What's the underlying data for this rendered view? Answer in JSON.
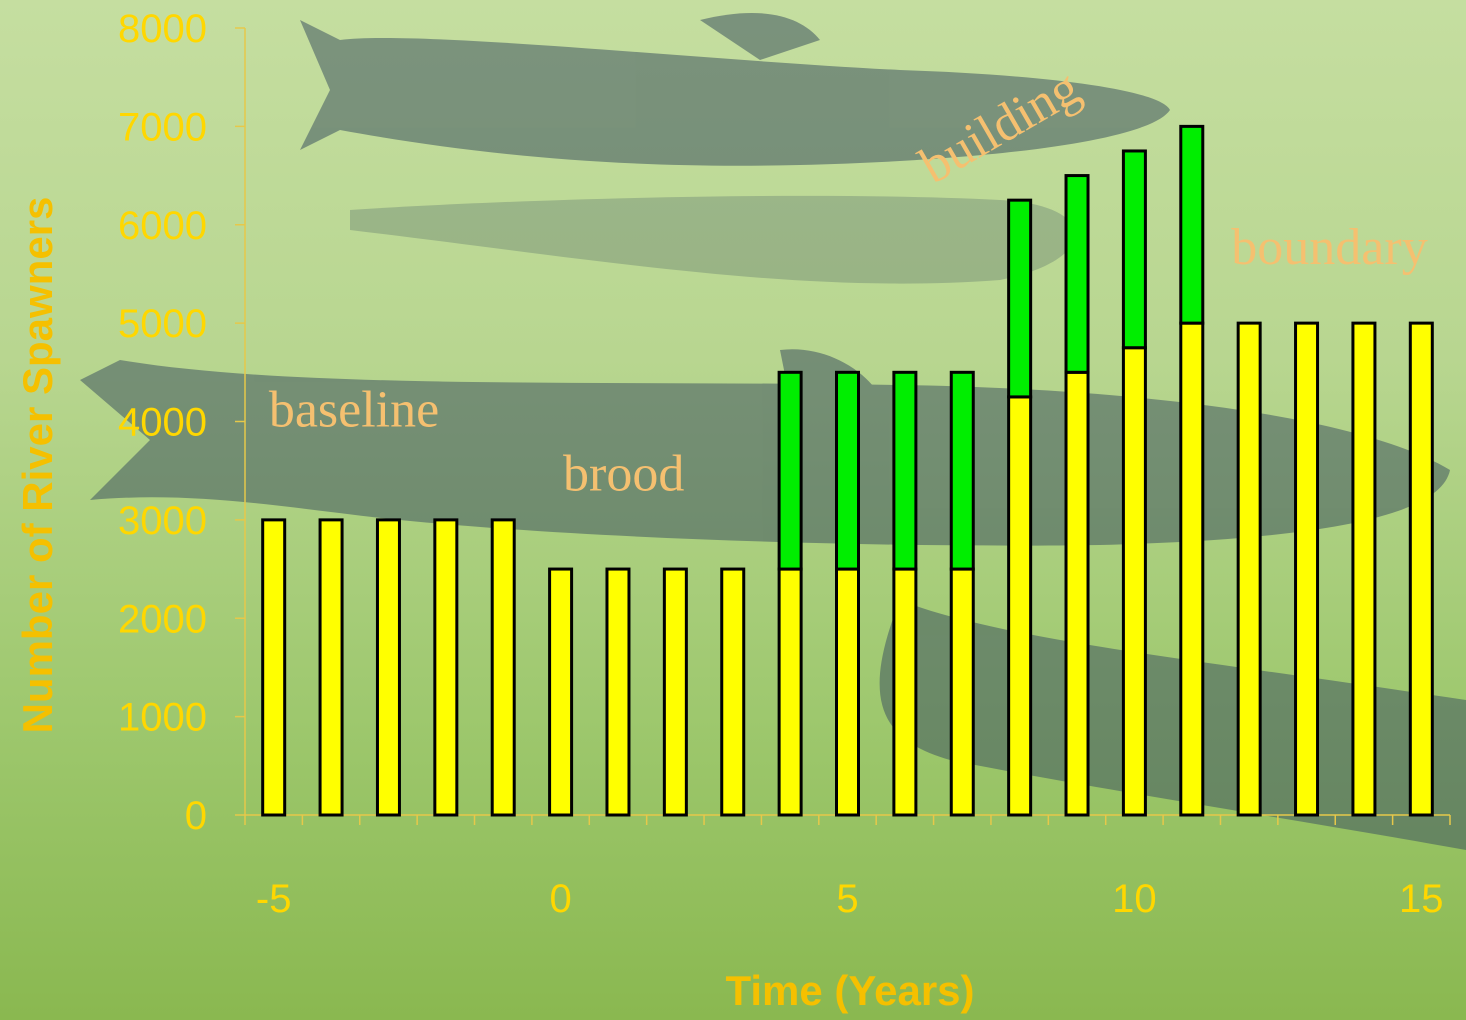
{
  "chart_data": {
    "type": "bar",
    "stacked": true,
    "xlabel": "Time (Years)",
    "ylabel": "Number of River Spawners",
    "xlim": [
      -5,
      15
    ],
    "ylim": [
      0,
      8000
    ],
    "x_ticks": [
      "-5",
      "0",
      "5",
      "10",
      "15"
    ],
    "y_ticks": [
      "0",
      "1000",
      "2000",
      "3000",
      "4000",
      "5000",
      "6000",
      "7000",
      "8000"
    ],
    "x": [
      -5,
      -4,
      -3,
      -2,
      -1,
      0,
      1,
      2,
      3,
      4,
      5,
      6,
      7,
      8,
      9,
      10,
      11,
      12,
      13,
      14,
      15
    ],
    "series": [
      {
        "color": "#ffff00",
        "values": [
          3000,
          3000,
          3000,
          3000,
          3000,
          2500,
          2500,
          2500,
          2500,
          2500,
          2500,
          2500,
          2500,
          4250,
          4500,
          4750,
          5000,
          5000,
          5000,
          5000,
          5000
        ]
      },
      {
        "color": "#00ee00",
        "values": [
          0,
          0,
          0,
          0,
          0,
          0,
          0,
          0,
          0,
          2000,
          2000,
          2000,
          2000,
          2000,
          2000,
          2000,
          2000,
          0,
          0,
          0,
          0
        ]
      }
    ],
    "annotations": [
      {
        "text": "baseline",
        "x": -3.6,
        "y": 3950
      },
      {
        "text": "brood",
        "x": 1.1,
        "y": 3300
      },
      {
        "text": "building",
        "x": 7.8,
        "y": 6850
      },
      {
        "text": "boundary",
        "x": 13.4,
        "y": 5600
      }
    ],
    "colors": {
      "axis": "#e6c84a",
      "tick_label": "#ffd700",
      "axis_title": "#f5c000",
      "annotation": "#f5c070"
    }
  }
}
